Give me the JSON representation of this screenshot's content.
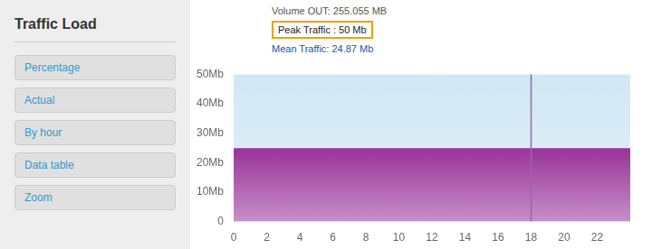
{
  "chart_data": {
    "type": "area",
    "title": "Traffic Load",
    "x": [
      0,
      24
    ],
    "series": [
      {
        "color": "#d0e8f4",
        "values": [
          50,
          50
        ]
      },
      {
        "color": "#993399",
        "values": [
          24.87,
          24.87
        ]
      },
      {
        "type": "line",
        "color": "#9966aa",
        "x": [
          18,
          18
        ],
        "values": [
          0,
          50
        ]
      }
    ],
    "xlim": [
      0,
      24
    ],
    "xticks": [
      0,
      2,
      4,
      6,
      8,
      10,
      12,
      14,
      16,
      18,
      20,
      22
    ],
    "ylim": [
      0,
      50
    ],
    "yticks": [
      0,
      {
        "value": 10,
        "label": "10Mb"
      },
      {
        "value": 20,
        "label": "20Mb"
      },
      {
        "value": 30,
        "label": "30Mb"
      },
      {
        "value": 40,
        "label": "40Mb"
      },
      {
        "value": 50,
        "label": "50Mb"
      }
    ],
    "grid": false,
    "annotations": [
      "Volume OUT: 255.055 MB",
      "Peak Traffic : 50 Mb",
      "Mean Traffic: 24.87 Mb",
      "Percentage",
      "Actual",
      "By hour",
      "Data table",
      "Zoom"
    ]
  }
}
